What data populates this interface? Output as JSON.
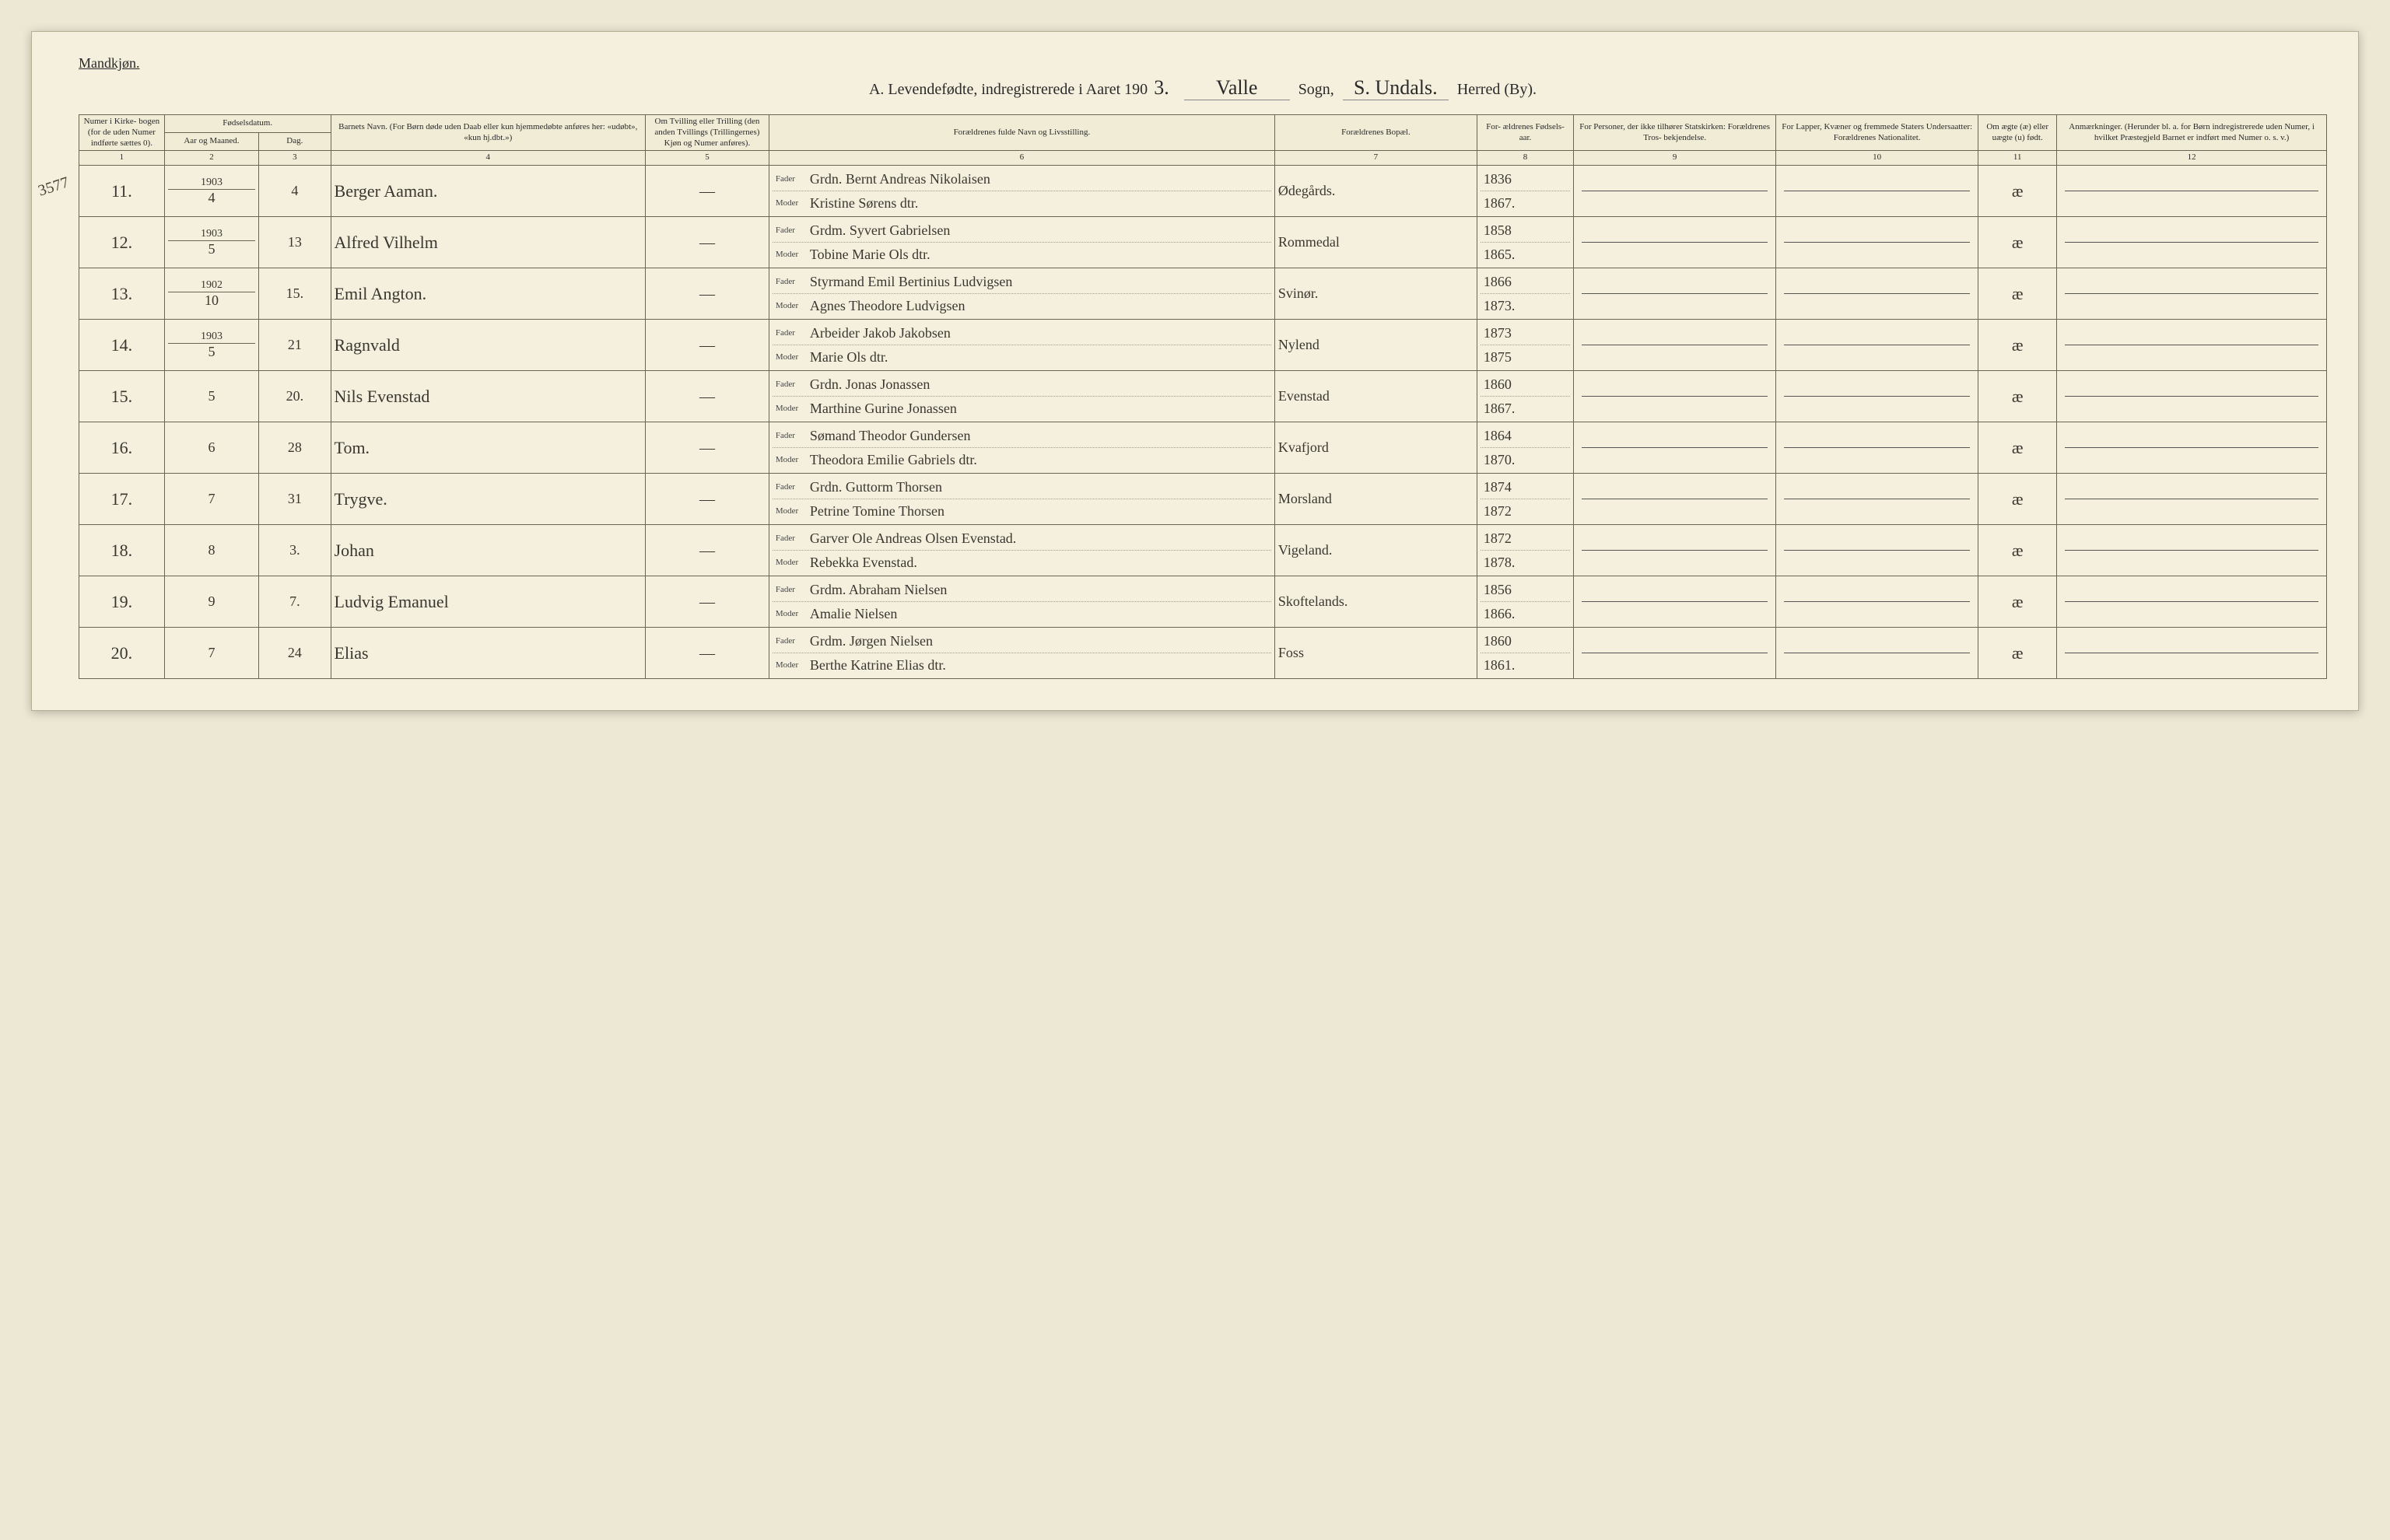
{
  "header": {
    "gender_heading": "Mandkjøn.",
    "title_prefix": "A. Levendefødte, indregistrerede i Aaret 190",
    "year_suffix": "3.",
    "sogn_value": "Valle",
    "sogn_label": "Sogn,",
    "herred_value": "S. Undals.",
    "herred_label": "Herred (By).",
    "margin_note": "3577"
  },
  "labels": {
    "fader": "Fader",
    "moder": "Moder",
    "dash": "—"
  },
  "columns": {
    "c1": "Numer i Kirke- bogen (for de uden Numer indførte sættes 0).",
    "c2_top": "Fødselsdatum.",
    "c2a": "Aar og Maaned.",
    "c2b": "Dag.",
    "c4": "Barnets Navn.\n(For Børn døde uden Daab eller kun hjemmedøbte anføres her: «udøbt», «kun hj.dbt.»)",
    "c5": "Om Tvilling eller Trilling (den anden Tvillings (Trillingernes) Kjøn og Numer anføres).",
    "c6": "Forældrenes fulde Navn og Livsstilling.",
    "c7": "Forældrenes Bopæl.",
    "c8": "For- ældrenes Fødsels- aar.",
    "c9": "For Personer, der ikke tilhører Statskirken: Forældrenes Tros- bekjendelse.",
    "c10": "For Lapper, Kvæner og fremmede Staters Undersaatter: Forældrenes Nationalitet.",
    "c11": "Om ægte (æ) eller uægte (u) født.",
    "c12": "Anmærkninger.\n(Herunder bl. a. for Børn indregistrerede uden Numer, i hvilket Præstegjeld Barnet er indført med Numer o. s. v.)"
  },
  "colnums": [
    "1",
    "2",
    "3",
    "4",
    "5",
    "6",
    "7",
    "8",
    "9",
    "10",
    "11",
    "12"
  ],
  "rows": [
    {
      "n": "11.",
      "year": "1903",
      "month": "4",
      "day": "4",
      "name": "Berger Aaman.",
      "fader": "Grdn. Bernt Andreas Nikolaisen",
      "moder": "Kristine Sørens dtr.",
      "bopel": "Ødegårds.",
      "fy": "1836",
      "my": "1867.",
      "aegte": "æ"
    },
    {
      "n": "12.",
      "year": "1903",
      "month": "5",
      "day": "13",
      "name": "Alfred Vilhelm",
      "fader": "Grdm. Syvert Gabrielsen",
      "moder": "Tobine Marie Ols dtr.",
      "bopel": "Rommedal",
      "fy": "1858",
      "my": "1865.",
      "aegte": "æ"
    },
    {
      "n": "13.",
      "year": "1902",
      "month": "10",
      "day": "15.",
      "name": "Emil Angton.",
      "fader": "Styrmand Emil Bertinius Ludvigsen",
      "moder": "Agnes Theodore Ludvigsen",
      "bopel": "Svinør.",
      "fy": "1866",
      "my": "1873.",
      "aegte": "æ"
    },
    {
      "n": "14.",
      "year": "1903",
      "month": "5",
      "day": "21",
      "name": "Ragnvald",
      "fader": "Arbeider Jakob Jakobsen",
      "moder": "Marie Ols dtr.",
      "bopel": "Nylend",
      "fy": "1873",
      "my": "1875",
      "aegte": "æ"
    },
    {
      "n": "15.",
      "year": "",
      "month": "5",
      "day": "20.",
      "name": "Nils Evenstad",
      "fader": "Grdn. Jonas Jonassen",
      "moder": "Marthine Gurine Jonassen",
      "bopel": "Evenstad",
      "fy": "1860",
      "my": "1867.",
      "aegte": "æ"
    },
    {
      "n": "16.",
      "year": "",
      "month": "6",
      "day": "28",
      "name": "Tom.",
      "fader": "Sømand Theodor Gundersen",
      "moder": "Theodora Emilie Gabriels dtr.",
      "bopel": "Kvafjord",
      "fy": "1864",
      "my": "1870.",
      "aegte": "æ"
    },
    {
      "n": "17.",
      "year": "",
      "month": "7",
      "day": "31",
      "name": "Trygve.",
      "fader": "Grdn. Guttorm Thorsen",
      "moder": "Petrine Tomine Thorsen",
      "bopel": "Morsland",
      "fy": "1874",
      "my": "1872",
      "aegte": "æ"
    },
    {
      "n": "18.",
      "year": "",
      "month": "8",
      "day": "3.",
      "name": "Johan",
      "fader": "Garver Ole Andreas Olsen Evenstad.",
      "moder": "Rebekka Evenstad.",
      "bopel": "Vigeland.",
      "fy": "1872",
      "my": "1878.",
      "aegte": "æ"
    },
    {
      "n": "19.",
      "year": "",
      "month": "9",
      "day": "7.",
      "name": "Ludvig Emanuel",
      "fader": "Grdm. Abraham Nielsen",
      "moder": "Amalie Nielsen",
      "bopel": "Skoftelands.",
      "fy": "1856",
      "my": "1866.",
      "aegte": "æ"
    },
    {
      "n": "20.",
      "year": "",
      "month": "7",
      "day": "24",
      "name": "Elias",
      "fader": "Grdm. Jørgen Nielsen",
      "moder": "Berthe Katrine Elias dtr.",
      "bopel": "Foss",
      "fy": "1860",
      "my": "1861.",
      "aegte": "æ"
    }
  ]
}
